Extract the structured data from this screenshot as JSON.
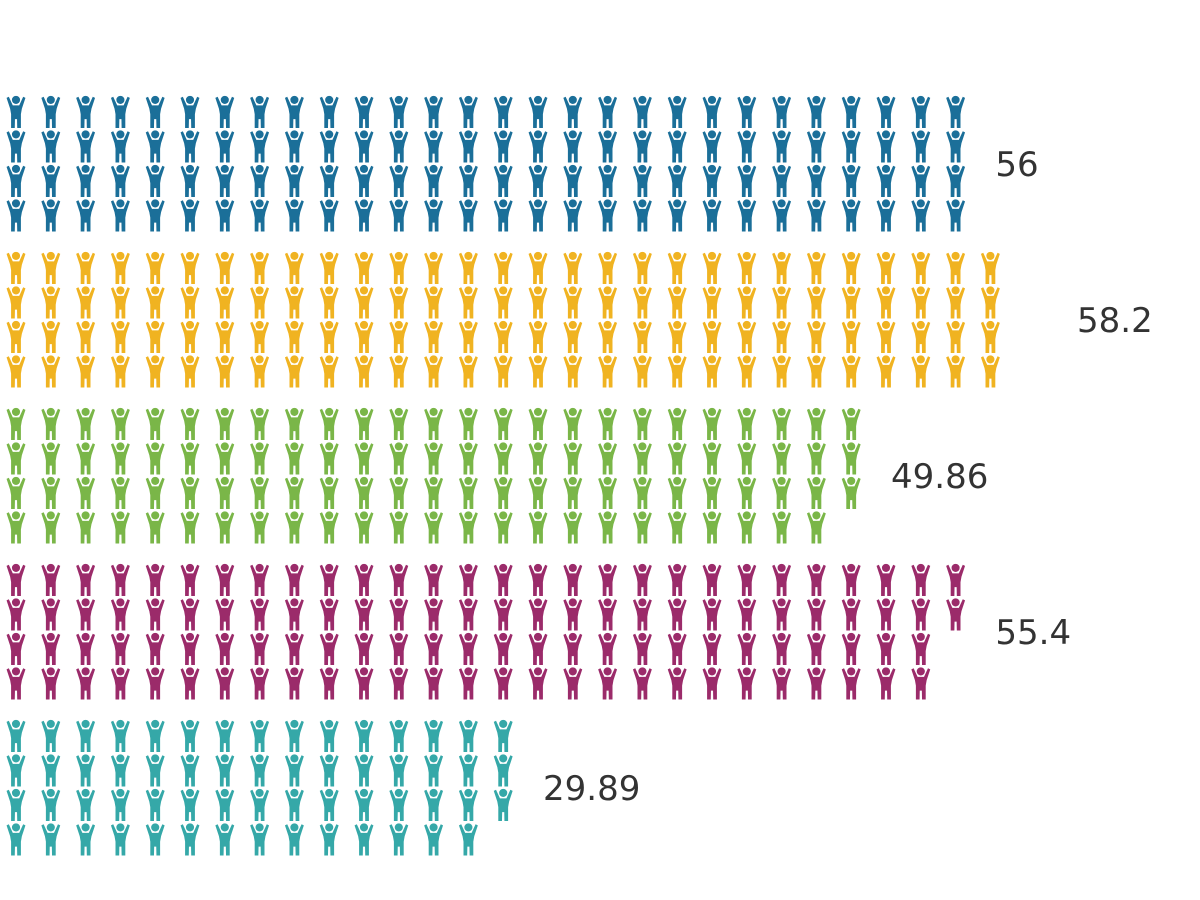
{
  "chart_data": {
    "type": "bar",
    "subtype": "pictograph",
    "icon": "person-arms-raised-icon",
    "icons_per_column": 4,
    "units_per_icon": 0.5,
    "categories": [
      "",
      "",
      "",
      "",
      ""
    ],
    "values": [
      56,
      58.2,
      49.86,
      55.4,
      29.89
    ],
    "value_labels": [
      "56",
      "58.2",
      "49.86",
      "55.4",
      "29.89"
    ],
    "colors": [
      "#1b6f99",
      "#f0b321",
      "#7ab648",
      "#9b2b6a",
      "#35a8a8"
    ],
    "title": "",
    "xlabel": "",
    "ylabel": "",
    "grid": false,
    "legend": "none"
  }
}
